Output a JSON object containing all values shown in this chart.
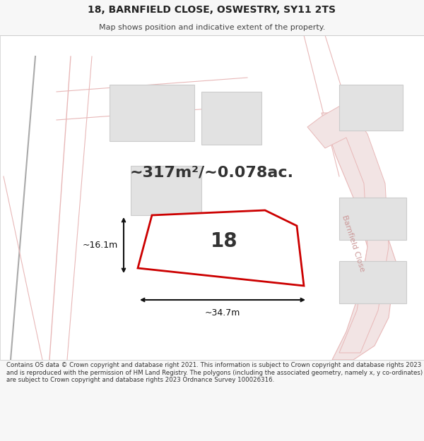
{
  "title_line1": "18, BARNFIELD CLOSE, OSWESTRY, SY11 2TS",
  "title_line2": "Map shows position and indicative extent of the property.",
  "footer_text": "Contains OS data © Crown copyright and database right 2021. This information is subject to Crown copyright and database rights 2023 and is reproduced with the permission of HM Land Registry. The polygons (including the associated geometry, namely x, y co-ordinates) are subject to Crown copyright and database rights 2023 Ordnance Survey 100026316.",
  "bg_color": "#f7f7f7",
  "map_bg_color": "#ffffff",
  "property_edge": "#cc0000",
  "road_color": "#e8b8b8",
  "road_fill": "#f2e4e4",
  "building_fill": "#e2e2e2",
  "building_edge": "#cccccc",
  "area_text": "~317m²/~0.078ac.",
  "width_text": "~34.7m",
  "height_text": "~16.1m",
  "property_number": "18",
  "road_label": "Barnfield Close",
  "title_fontsize": 10,
  "subtitle_fontsize": 8,
  "footer_fontsize": 6.2
}
